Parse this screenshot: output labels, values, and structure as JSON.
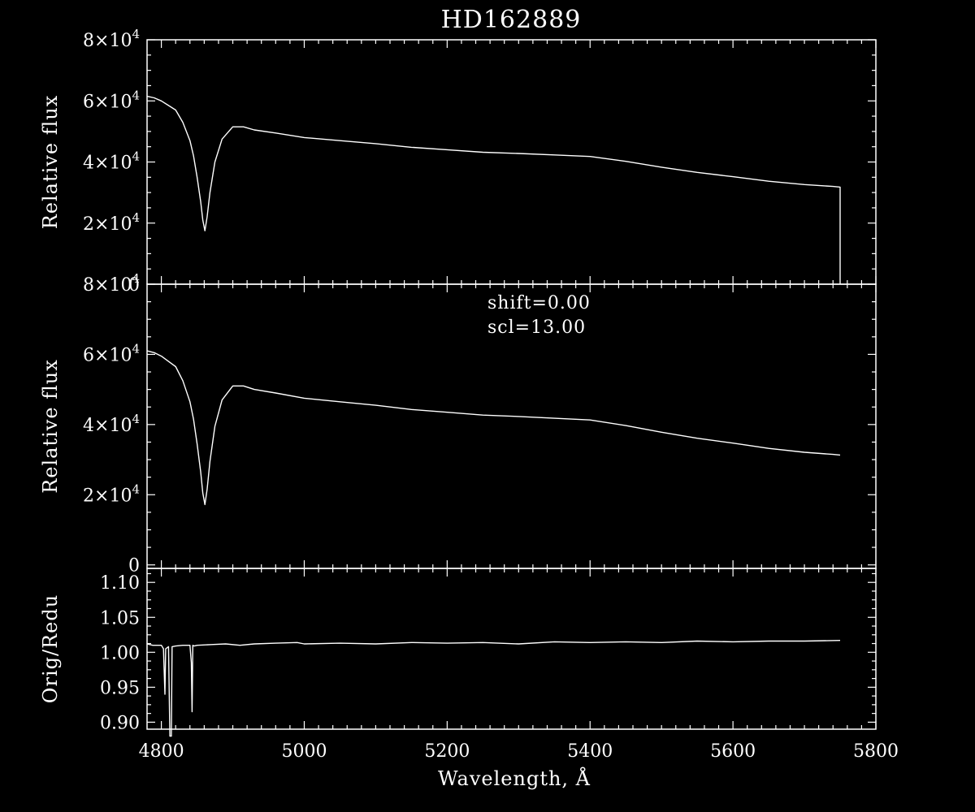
{
  "chart_data": {
    "title": "HD162889",
    "xlabel": "Wavelength, Å",
    "xlim": [
      4780,
      5800
    ],
    "xticks": [
      4800,
      5000,
      5200,
      5400,
      5600,
      5800
    ],
    "panels": [
      {
        "type": "line",
        "ylabel": "Relative flux",
        "ylim": [
          0,
          80000
        ],
        "yticks": [
          {
            "value": 0,
            "mant": "0",
            "exp": ""
          },
          {
            "value": 20000,
            "mant": "2×10",
            "exp": "4"
          },
          {
            "value": 40000,
            "mant": "4×10",
            "exp": "4"
          },
          {
            "value": 60000,
            "mant": "6×10",
            "exp": "4"
          },
          {
            "value": 80000,
            "mant": "8×10",
            "exp": "4"
          }
        ],
        "series": [
          {
            "x": [
              4780,
              4790,
              4800,
              4810,
              4820,
              4830,
              4840,
              4845,
              4850,
              4855,
              4858,
              4861,
              4864,
              4868,
              4875,
              4885,
              4900,
              4915,
              4930,
              4960,
              5000,
              5050,
              5100,
              5150,
              5200,
              5250,
              5300,
              5350,
              5400,
              5450,
              5500,
              5550,
              5600,
              5650,
              5700,
              5740,
              5750,
              5750
            ],
            "y": [
              61500,
              61000,
              60000,
              58500,
              57000,
              53000,
              47000,
              42000,
              35000,
              27000,
              21000,
              17500,
              22000,
              30000,
              40000,
              47500,
              51500,
              51500,
              50500,
              49500,
              48000,
              47000,
              46000,
              44800,
              44000,
              43200,
              42800,
              42300,
              41800,
              40200,
              38300,
              36600,
              35200,
              33700,
              32600,
              32000,
              31800,
              0
            ]
          }
        ]
      },
      {
        "type": "line",
        "ylabel": "Relative flux",
        "ylim": [
          -1000,
          80000
        ],
        "yticks": [
          {
            "value": 0,
            "mant": "0",
            "exp": ""
          },
          {
            "value": 20000,
            "mant": "2×10",
            "exp": "4"
          },
          {
            "value": 40000,
            "mant": "4×10",
            "exp": "4"
          },
          {
            "value": 60000,
            "mant": "6×10",
            "exp": "4"
          },
          {
            "value": 80000,
            "mant": "8×10",
            "exp": "4"
          }
        ],
        "annotations": [
          "shift=0.00",
          "scl=13.00"
        ],
        "series": [
          {
            "x": [
              4780,
              4790,
              4800,
              4810,
              4820,
              4830,
              4840,
              4845,
              4850,
              4855,
              4858,
              4861,
              4864,
              4868,
              4875,
              4885,
              4900,
              4915,
              4930,
              4960,
              5000,
              5050,
              5100,
              5150,
              5200,
              5250,
              5300,
              5350,
              5400,
              5450,
              5500,
              5550,
              5600,
              5650,
              5700,
              5740,
              5750
            ],
            "y": [
              61000,
              60500,
              59500,
              58000,
              56500,
              52500,
              46500,
              41500,
              34500,
              26500,
              20500,
              17200,
              21500,
              29500,
              39500,
              47000,
              51000,
              51000,
              50000,
              49000,
              47500,
              46500,
              45500,
              44300,
              43500,
              42700,
              42300,
              41800,
              41300,
              39700,
              37800,
              36100,
              34700,
              33200,
              32100,
              31500,
              31300
            ]
          }
        ]
      },
      {
        "type": "line",
        "ylabel": "Orig/Redu",
        "ylim": [
          0.89,
          1.12
        ],
        "yticks": [
          {
            "value": 0.9,
            "mant": "0.90",
            "exp": ""
          },
          {
            "value": 0.95,
            "mant": "0.95",
            "exp": ""
          },
          {
            "value": 1.0,
            "mant": "1.00",
            "exp": ""
          },
          {
            "value": 1.05,
            "mant": "1.05",
            "exp": ""
          },
          {
            "value": 1.1,
            "mant": "1.10",
            "exp": ""
          }
        ],
        "series": [
          {
            "x": [
              4780,
              4788,
              4790,
              4795,
              4800,
              4803,
              4805,
              4806,
              4810,
              4812,
              4814,
              4815,
              4820,
              4830,
              4840,
              4842,
              4843,
              4844,
              4846,
              4850,
              4870,
              4890,
              4910,
              4930,
              4960,
              4990,
              5000,
              5050,
              5100,
              5150,
              5200,
              5250,
              5300,
              5350,
              5400,
              5450,
              5500,
              5550,
              5600,
              5650,
              5700,
              5750
            ],
            "y": [
              1.012,
              1.01,
              1.01,
              1.01,
              1.01,
              1.005,
              0.94,
              1.005,
              1.008,
              0.88,
              0.88,
              1.008,
              1.009,
              1.01,
              1.01,
              0.985,
              0.915,
              1.01,
              1.009,
              1.01,
              1.011,
              1.012,
              1.01,
              1.012,
              1.013,
              1.014,
              1.012,
              1.013,
              1.012,
              1.014,
              1.013,
              1.014,
              1.012,
              1.015,
              1.014,
              1.015,
              1.014,
              1.016,
              1.015,
              1.016,
              1.016,
              1.017
            ]
          }
        ]
      }
    ]
  }
}
